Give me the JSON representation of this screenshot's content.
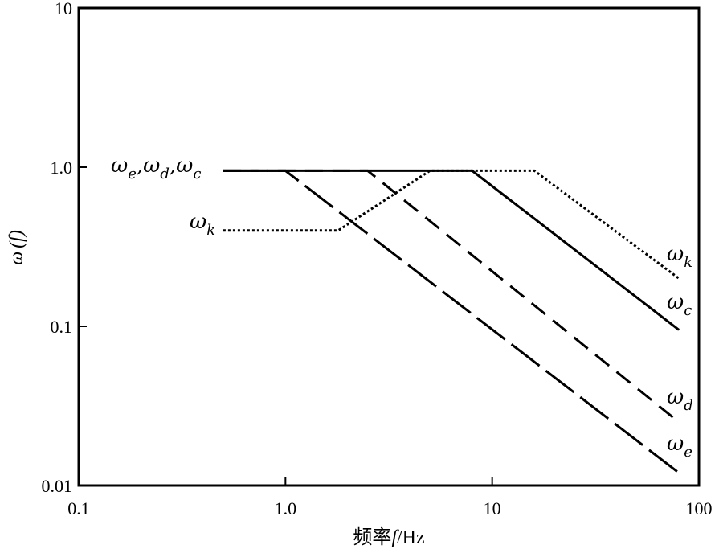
{
  "chart_data": {
    "type": "line",
    "xscale": "log",
    "yscale": "log",
    "xlim": [
      0.1,
      100
    ],
    "ylim": [
      0.01,
      10
    ],
    "xticks": [
      "0.1",
      "1.0",
      "10",
      "100"
    ],
    "yticks": [
      "0.01",
      "0.1",
      "1.0",
      "10"
    ],
    "xlabel": {
      "main": "频率",
      "var": "f",
      "unit": "/Hz"
    },
    "ylabel": {
      "main": "ω",
      "arg": "(f)"
    },
    "grid": false,
    "series": [
      {
        "name": "ωk",
        "style": "dotted",
        "x": [
          0.5,
          1.8,
          5,
          16,
          80
        ],
        "y": [
          0.4,
          0.4,
          0.95,
          0.95,
          0.2
        ]
      },
      {
        "name": "ωc",
        "style": "solid",
        "x": [
          0.5,
          8,
          80
        ],
        "y": [
          0.95,
          0.95,
          0.095
        ]
      },
      {
        "name": "ωd",
        "style": "dashed",
        "x": [
          0.5,
          2.5,
          80
        ],
        "y": [
          0.95,
          0.95,
          0.025
        ]
      },
      {
        "name": "ωe",
        "style": "longdash",
        "x": [
          0.5,
          1.0,
          80
        ],
        "y": [
          0.95,
          0.95,
          0.012
        ]
      }
    ],
    "annotations": {
      "shared": {
        "parts": [
          {
            "b": "ω",
            "s": "e"
          },
          {
            "b": "ω",
            "s": "d"
          },
          {
            "b": "ω",
            "s": "c"
          }
        ]
      },
      "k_left": {
        "b": "ω",
        "s": "k"
      },
      "k_right": {
        "b": "ω",
        "s": "k"
      },
      "c_right": {
        "b": "ω",
        "s": "c"
      },
      "d_right": {
        "b": "ω",
        "s": "d"
      },
      "e_right": {
        "b": "ω",
        "s": "e"
      }
    }
  }
}
